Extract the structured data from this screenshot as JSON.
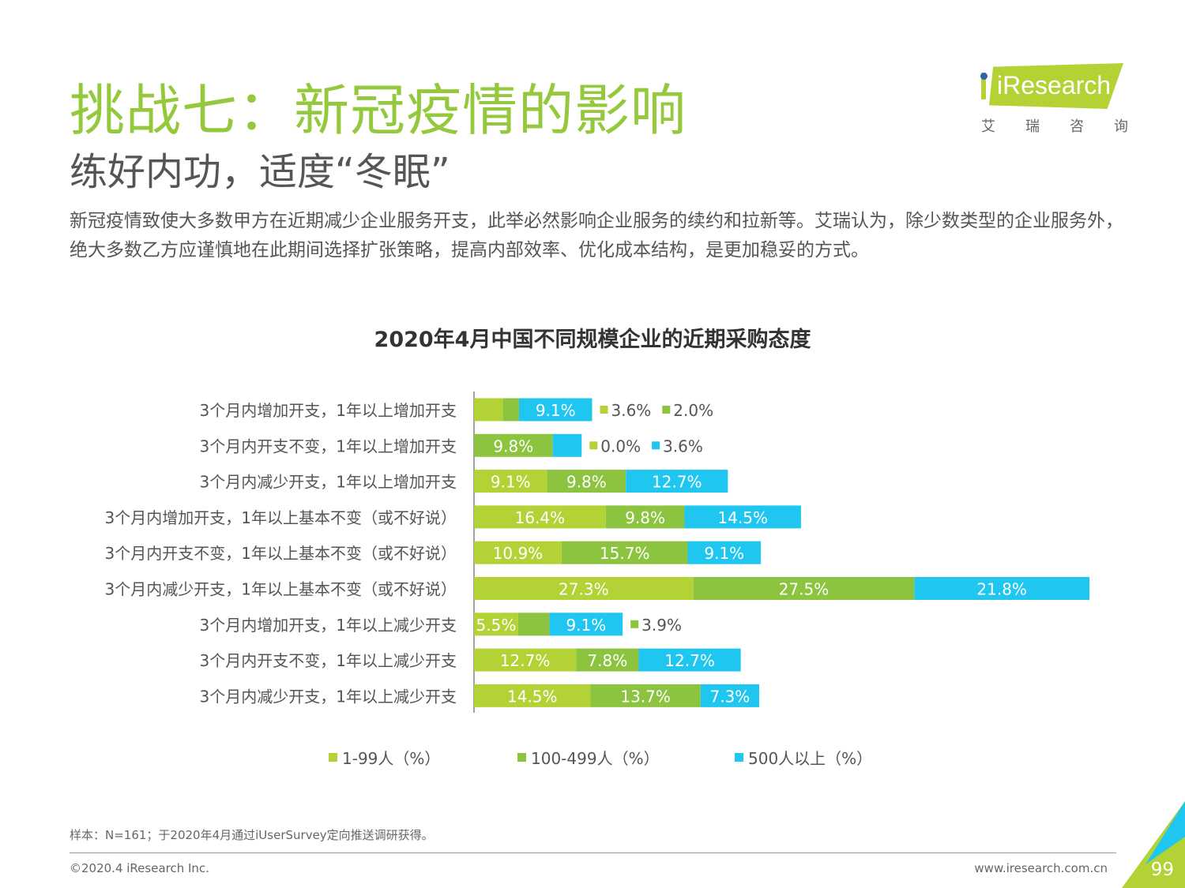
{
  "header": {
    "title": "挑战七：新冠疫情的影响",
    "subtitle": "练好内功，适度“冬眠”",
    "description": "新冠疫情致使大多数甲方在近期减少企业服务开支，此举必然影响企业服务的续约和拉新等。艾瑞认为，除少数类型的企业服务外，绝大多数乙方应谨慎地在此期间选择扩张策略，提高内部效率、优化成本结构，是更加稳妥的方式。"
  },
  "logo": {
    "text": "iResearch",
    "cn": [
      "艾",
      "瑞",
      "咨",
      "询"
    ]
  },
  "chart_data": {
    "type": "bar",
    "orientation": "horizontal",
    "stacked": true,
    "title": "2020年4月中国不同规模企业的近期采购态度",
    "categories": [
      "3个月内增加开支，1年以上增加开支",
      "3个月内开支不变，1年以上增加开支",
      "3个月内减少开支，1年以上增加开支",
      "3个月内增加开支，1年以上基本不变（或不好说）",
      "3个月内开支不变，1年以上基本不变（或不好说）",
      "3个月内减少开支，1年以上基本不变（或不好说）",
      "3个月内增加开支，1年以上减少开支",
      "3个月内开支不变，1年以上减少开支",
      "3个月内减少开支，1年以上减少开支"
    ],
    "series": [
      {
        "name": "1-99人（%）",
        "color": "#b2d235",
        "values": [
          3.6,
          0.0,
          9.1,
          16.4,
          10.9,
          27.3,
          5.5,
          12.7,
          14.5
        ]
      },
      {
        "name": "100-499人（%）",
        "color": "#8cc43f",
        "values": [
          2.0,
          9.8,
          9.8,
          9.8,
          15.7,
          27.5,
          3.9,
          7.8,
          13.7
        ]
      },
      {
        "name": "500人以上（%）",
        "color": "#1ec6f0",
        "values": [
          9.1,
          3.6,
          12.7,
          14.5,
          9.1,
          21.8,
          9.1,
          12.7,
          7.3
        ]
      }
    ],
    "legend_position": "bottom"
  },
  "footer": {
    "note": "样本：N=161；于2020年4月通过iUserSurvey定向推送调研获得。",
    "copyright": "©2020.4 iResearch Inc.",
    "url": "www.iresearch.com.cn",
    "page": "99"
  }
}
